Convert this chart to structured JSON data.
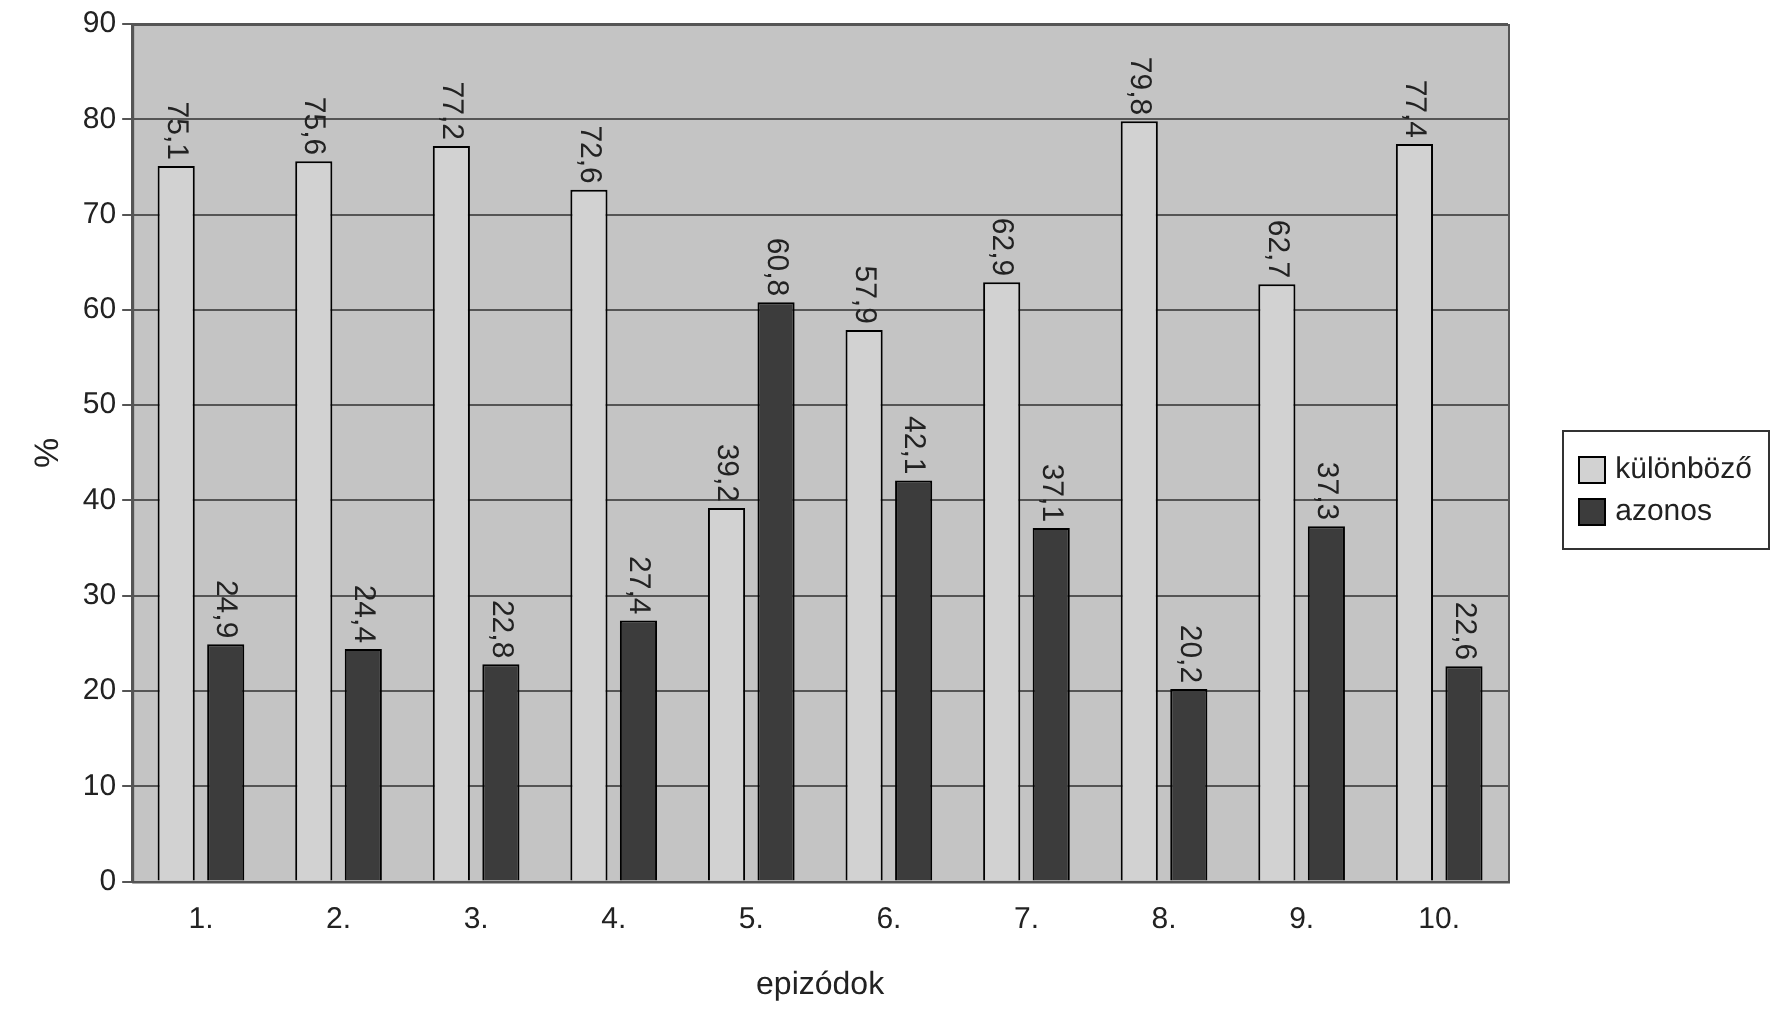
{
  "chart_data": {
    "type": "bar",
    "xlabel": "epizódok",
    "ylabel": "%",
    "categories": [
      "1.",
      "2.",
      "3.",
      "4.",
      "5.",
      "6.",
      "7.",
      "8.",
      "9.",
      "10."
    ],
    "series": [
      {
        "name": "különböző",
        "color": "#d2d2d2",
        "values": [
          75.1,
          75.6,
          77.2,
          72.6,
          39.2,
          57.9,
          62.9,
          79.8,
          62.7,
          77.4
        ],
        "value_labels": [
          "75,1",
          "75,6",
          "77,2",
          "72,6",
          "39,2",
          "57,9",
          "62,9",
          "79,8",
          "62,7",
          "77,4"
        ]
      },
      {
        "name": "azonos",
        "color": "#3c3c3c",
        "values": [
          24.9,
          24.4,
          22.8,
          27.4,
          60.8,
          42.1,
          37.1,
          20.2,
          37.3,
          22.6
        ],
        "value_labels": [
          "24,9",
          "24,4",
          "22,8",
          "27,4",
          "60,8",
          "42,1",
          "37,1",
          "20,2",
          "37,3",
          "22,6"
        ]
      }
    ],
    "ylim": [
      0,
      90
    ],
    "yticks": [
      0,
      10,
      20,
      30,
      40,
      50,
      60,
      70,
      80,
      90
    ],
    "grid": "y",
    "legend": "right"
  }
}
